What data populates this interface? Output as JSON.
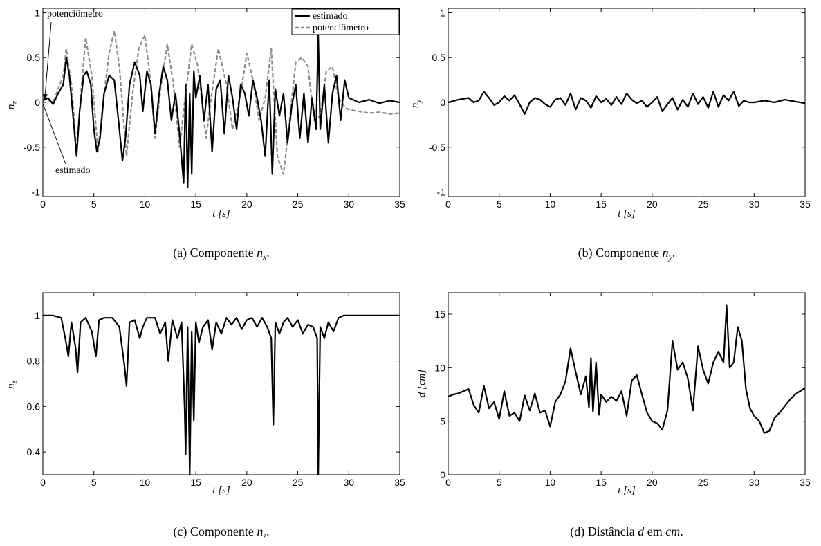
{
  "colors": {
    "estimado": "#000000",
    "potenciometro": "#8c8c8c"
  },
  "panels": {
    "a": {
      "ylabel": "n",
      "ysub": "x",
      "xlabel": "t",
      "xunit": "[s]",
      "caption_pre": "(a)  Componente ",
      "caption_var": "n",
      "caption_sub": "x",
      "caption_post": ".",
      "legend": [
        "estimado",
        "potenciômetro"
      ],
      "annot_top": "potenciômetro",
      "annot_bottom": "estimado"
    },
    "b": {
      "ylabel": "n",
      "ysub": "y",
      "xlabel": "t",
      "xunit": "[s]",
      "caption_pre": "(b)  Componente ",
      "caption_var": "n",
      "caption_sub": "y",
      "caption_post": "."
    },
    "c": {
      "ylabel": "n",
      "ysub": "z",
      "xlabel": "t",
      "xunit": "[s]",
      "caption_pre": "(c)  Componente ",
      "caption_var": "n",
      "caption_sub": "z",
      "caption_post": "."
    },
    "d": {
      "ylabel": "d",
      "yunit": "[cm]",
      "xlabel": "t",
      "xunit": "[s]",
      "caption_pre": "(d)  Distância ",
      "caption_var": "d",
      "caption_mid": " em ",
      "caption_var2": "cm",
      "caption_post": "."
    }
  },
  "chart_data": [
    {
      "type": "line",
      "id": "a",
      "title": "",
      "xlabel": "t [s]",
      "ylabel": "n_x",
      "xlim": [
        0,
        35
      ],
      "ylim": [
        -1.05,
        1.05
      ],
      "xticks": [
        0,
        5,
        10,
        15,
        20,
        25,
        30,
        35
      ],
      "yticks": [
        -1,
        -0.5,
        0,
        0.5,
        1
      ],
      "legend_position": "top-right",
      "series": [
        {
          "name": "estimado",
          "style": "solid",
          "x": [
            0,
            0.5,
            1,
            1.5,
            2,
            2.3,
            2.6,
            3,
            3.3,
            3.6,
            4,
            4.3,
            4.7,
            5,
            5.3,
            5.6,
            6,
            6.5,
            7,
            7.5,
            7.8,
            8.1,
            8.5,
            9,
            9.5,
            9.8,
            10.2,
            10.6,
            11,
            11.4,
            11.8,
            12.2,
            12.6,
            13,
            13.4,
            13.8,
            14,
            14.2,
            14.4,
            14.6,
            14.8,
            15,
            15.4,
            15.8,
            16.2,
            16.6,
            17,
            17.4,
            17.8,
            18.2,
            18.6,
            19,
            19.4,
            19.8,
            20.2,
            20.6,
            21,
            21.4,
            21.8,
            22.2,
            22.5,
            22.8,
            23.2,
            23.6,
            24,
            24.4,
            24.8,
            25.2,
            25.6,
            26,
            26.4,
            26.8,
            27,
            27.2,
            27.6,
            28,
            28.4,
            28.8,
            29.2,
            29.6,
            30,
            31,
            32,
            33,
            34,
            35
          ],
          "y": [
            0.02,
            0.05,
            -0.02,
            0.1,
            0.2,
            0.5,
            0.3,
            -0.2,
            -0.6,
            -0.1,
            0.3,
            0.35,
            0.2,
            -0.3,
            -0.55,
            -0.4,
            0.1,
            0.3,
            0.25,
            -0.3,
            -0.65,
            -0.4,
            0.2,
            0.45,
            0.3,
            -0.1,
            0.35,
            0.2,
            -0.35,
            0.1,
            0.4,
            0.25,
            -0.2,
            0.1,
            -0.35,
            -0.9,
            0.2,
            -0.95,
            0.1,
            -0.8,
            0.35,
            0.05,
            0.3,
            -0.2,
            0.2,
            -0.55,
            0.15,
            0.25,
            -0.35,
            0.3,
            0.05,
            -0.3,
            0.2,
            0.1,
            -0.15,
            0.25,
            0.05,
            -0.2,
            -0.6,
            0.25,
            -0.8,
            0.15,
            -0.15,
            0.1,
            -0.45,
            -0.05,
            0.2,
            -0.4,
            0.1,
            -0.45,
            0.05,
            -0.3,
            0.75,
            -0.3,
            0.2,
            -0.45,
            0.1,
            0.3,
            -0.2,
            0.25,
            0.05,
            0.0,
            0.03,
            -0.01,
            0.02,
            0.0
          ]
        },
        {
          "name": "potenciômetro",
          "style": "dashed",
          "x": [
            0,
            1,
            2,
            2.3,
            2.8,
            3.3,
            3.8,
            4.2,
            4.8,
            5.4,
            6,
            6.5,
            7,
            7.5,
            8.2,
            8.8,
            9.4,
            10,
            10.5,
            11,
            11.6,
            12.2,
            12.8,
            13.4,
            14,
            14.6,
            15.2,
            16,
            16.5,
            17.2,
            18,
            18.6,
            19.4,
            20,
            20.6,
            21.2,
            21.8,
            22.4,
            23,
            23.6,
            24.2,
            24.8,
            25.4,
            26,
            26.6,
            27.2,
            27.8,
            28.4,
            29,
            29.6,
            30,
            31,
            32,
            33,
            34,
            35
          ],
          "y": [
            0.05,
            0.0,
            0.3,
            0.6,
            0.2,
            -0.55,
            0.2,
            0.72,
            0.3,
            -0.55,
            0.1,
            0.55,
            0.8,
            0.4,
            -0.6,
            0.1,
            0.6,
            0.75,
            0.3,
            -0.4,
            0.2,
            0.65,
            0.2,
            -0.5,
            0.1,
            0.65,
            0.4,
            -0.4,
            0.05,
            0.6,
            0.2,
            -0.3,
            0.1,
            0.55,
            0.25,
            -0.2,
            0.05,
            0.6,
            -0.6,
            -0.8,
            -0.2,
            0.45,
            0.5,
            0.4,
            -0.2,
            -0.15,
            0.35,
            0.4,
            0.05,
            -0.05,
            -0.08,
            -0.1,
            -0.12,
            -0.11,
            -0.13,
            -0.12
          ]
        }
      ]
    },
    {
      "type": "line",
      "id": "b",
      "title": "",
      "xlabel": "t [s]",
      "ylabel": "n_y",
      "xlim": [
        0,
        35
      ],
      "ylim": [
        -1.05,
        1.05
      ],
      "xticks": [
        0,
        5,
        10,
        15,
        20,
        25,
        30,
        35
      ],
      "yticks": [
        -1,
        -0.5,
        0,
        0.5,
        1
      ],
      "series": [
        {
          "name": "",
          "style": "solid",
          "x": [
            0,
            1,
            2,
            2.5,
            3,
            3.5,
            4,
            4.5,
            5,
            5.5,
            6,
            6.5,
            7,
            7.5,
            8,
            8.5,
            9,
            9.5,
            10,
            10.5,
            11,
            11.5,
            12,
            12.5,
            13,
            13.5,
            14,
            14.5,
            15,
            15.5,
            16,
            16.5,
            17,
            17.5,
            18,
            18.5,
            19,
            19.5,
            20,
            20.5,
            21,
            21.5,
            22,
            22.5,
            23,
            23.5,
            24,
            24.5,
            25,
            25.5,
            26,
            26.5,
            27,
            27.5,
            28,
            28.5,
            29,
            29.5,
            30,
            31,
            32,
            33,
            34,
            35
          ],
          "y": [
            0.0,
            0.03,
            0.05,
            0.0,
            0.02,
            0.12,
            0.05,
            -0.03,
            0.0,
            0.07,
            0.02,
            0.08,
            -0.02,
            -0.13,
            0.0,
            0.05,
            0.03,
            -0.02,
            -0.05,
            0.03,
            0.05,
            -0.03,
            0.1,
            -0.08,
            0.05,
            0.02,
            -0.06,
            0.07,
            0.0,
            0.04,
            -0.03,
            0.06,
            -0.02,
            0.1,
            0.03,
            -0.01,
            0.02,
            -0.05,
            0.0,
            0.06,
            -0.1,
            -0.02,
            0.05,
            -0.08,
            0.03,
            -0.05,
            0.1,
            -0.02,
            0.06,
            -0.06,
            0.12,
            -0.05,
            0.08,
            0.02,
            0.12,
            -0.04,
            0.02,
            0.0,
            0.0,
            0.02,
            0.0,
            0.03,
            0.01,
            -0.01
          ]
        }
      ]
    },
    {
      "type": "line",
      "id": "c",
      "title": "",
      "xlabel": "t [s]",
      "ylabel": "n_z",
      "xlim": [
        0,
        35
      ],
      "ylim": [
        0.3,
        1.1
      ],
      "xticks": [
        0,
        5,
        10,
        15,
        20,
        25,
        30,
        35
      ],
      "yticks": [
        0.4,
        0.6,
        0.8,
        1
      ],
      "series": [
        {
          "name": "",
          "style": "solid",
          "x": [
            0,
            1,
            1.8,
            2.2,
            2.5,
            2.8,
            3.2,
            3.4,
            3.7,
            4.2,
            4.8,
            5.2,
            5.5,
            6,
            6.8,
            7.5,
            8.0,
            8.2,
            8.5,
            9.0,
            9.5,
            9.8,
            10.2,
            11,
            11.5,
            12,
            12.3,
            12.7,
            13.2,
            13.6,
            13.9,
            14.0,
            14.2,
            14.4,
            14.6,
            14.8,
            15.0,
            15.3,
            15.7,
            16.2,
            16.6,
            17.0,
            17.5,
            18,
            18.5,
            19,
            19.5,
            20,
            20.5,
            21,
            21.5,
            22,
            22.4,
            22.6,
            22.8,
            23.2,
            23.6,
            24,
            24.5,
            25,
            25.5,
            26,
            26.5,
            26.9,
            27.0,
            27.2,
            27.6,
            28,
            28.5,
            29,
            29.5,
            30,
            31,
            32,
            33,
            34,
            35
          ],
          "y": [
            1.0,
            1.0,
            0.99,
            0.9,
            0.82,
            0.97,
            0.86,
            0.75,
            0.97,
            0.99,
            0.93,
            0.82,
            0.98,
            0.99,
            0.99,
            0.95,
            0.78,
            0.69,
            0.97,
            0.98,
            0.9,
            0.95,
            0.99,
            0.99,
            0.92,
            0.97,
            0.8,
            0.98,
            0.9,
            0.97,
            0.6,
            0.39,
            0.95,
            0.3,
            0.93,
            0.54,
            0.97,
            0.88,
            0.95,
            0.98,
            0.85,
            0.97,
            0.92,
            0.99,
            0.96,
            0.99,
            0.94,
            0.98,
            0.99,
            0.95,
            0.99,
            0.95,
            0.9,
            0.52,
            0.97,
            0.92,
            0.97,
            0.99,
            0.95,
            0.98,
            0.92,
            0.96,
            0.95,
            0.9,
            0.3,
            0.95,
            0.9,
            0.97,
            0.93,
            0.99,
            1.0,
            1.0,
            1.0,
            1.0,
            1.0,
            1.0,
            1.0
          ]
        }
      ]
    },
    {
      "type": "line",
      "id": "d",
      "title": "",
      "xlabel": "t [s]",
      "ylabel": "d [cm]",
      "xlim": [
        0,
        35
      ],
      "ylim": [
        0,
        17
      ],
      "xticks": [
        0,
        5,
        10,
        15,
        20,
        25,
        30,
        35
      ],
      "yticks": [
        0,
        5,
        10,
        15
      ],
      "series": [
        {
          "name": "",
          "style": "solid",
          "x": [
            0,
            0.5,
            1,
            1.5,
            2,
            2.5,
            3,
            3.5,
            4,
            4.5,
            5,
            5.5,
            6,
            6.5,
            7,
            7.5,
            8,
            8.5,
            9,
            9.5,
            10,
            10.5,
            11,
            11.5,
            12,
            12.5,
            13,
            13.5,
            13.8,
            14,
            14.2,
            14.5,
            14.8,
            15,
            15.5,
            16,
            16.5,
            17,
            17.5,
            18,
            18.5,
            19,
            19.5,
            20,
            20.5,
            21,
            21.5,
            22,
            22.5,
            23,
            23.5,
            24,
            24.5,
            25,
            25.5,
            26,
            26.5,
            27,
            27.3,
            27.6,
            28,
            28.4,
            28.8,
            29.2,
            29.6,
            30,
            30.5,
            31,
            31.5,
            32,
            32.5,
            33,
            33.5,
            34,
            34.5,
            35
          ],
          "y": [
            7.3,
            7.5,
            7.6,
            7.8,
            8.0,
            6.5,
            5.8,
            8.3,
            6.2,
            6.8,
            5.2,
            7.8,
            5.5,
            5.8,
            5.0,
            7.4,
            6.0,
            7.6,
            5.8,
            6.0,
            4.5,
            6.8,
            7.5,
            8.7,
            11.8,
            9.6,
            7.5,
            9.2,
            6.3,
            10.9,
            5.9,
            10.5,
            5.6,
            7.5,
            6.8,
            7.3,
            6.9,
            7.8,
            5.5,
            8.8,
            9.3,
            7.5,
            5.8,
            5.0,
            4.8,
            4.2,
            6.0,
            12.5,
            9.8,
            10.5,
            9.0,
            6.0,
            12.0,
            9.8,
            8.5,
            10.5,
            11.5,
            10.5,
            15.8,
            10.0,
            10.5,
            13.8,
            12.5,
            8.0,
            6.2,
            5.5,
            5.0,
            3.9,
            4.1,
            5.3,
            5.8,
            6.4,
            7.0,
            7.5,
            7.8,
            8.1
          ]
        }
      ]
    }
  ]
}
